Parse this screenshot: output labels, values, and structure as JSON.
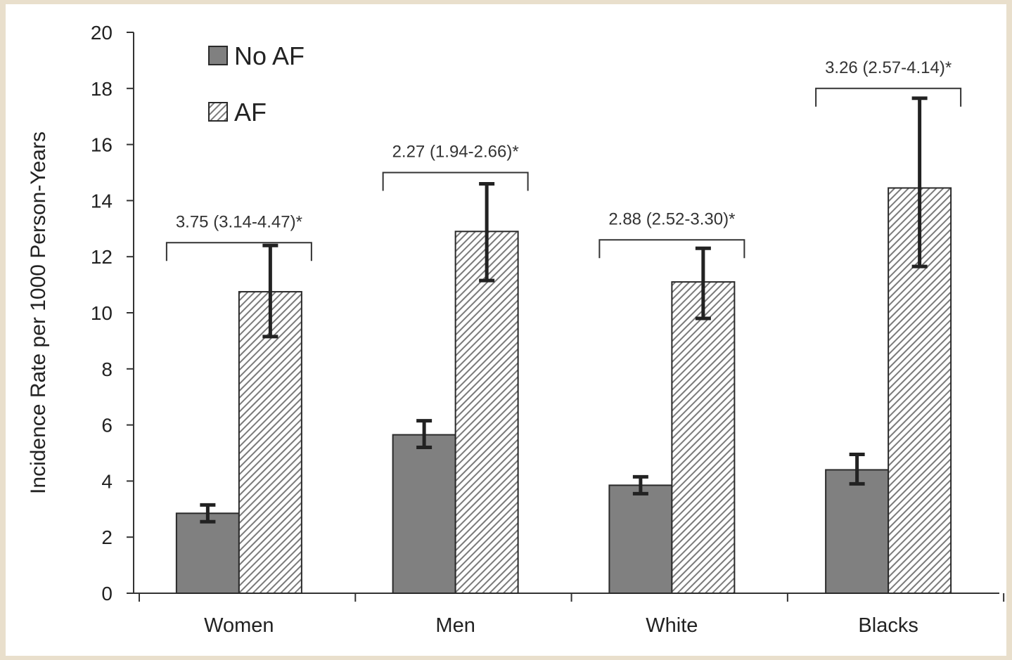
{
  "chart_data": {
    "type": "bar",
    "ylabel": "Incidence Rate per 1000 Person-Years",
    "xlabel": "",
    "ylim": [
      0,
      20
    ],
    "yticks": [
      0,
      2,
      4,
      6,
      8,
      10,
      12,
      14,
      16,
      18,
      20
    ],
    "categories": [
      "Women",
      "Men",
      "White",
      "Blacks"
    ],
    "series": [
      {
        "name": "No AF",
        "fill": "solid",
        "color": "#808080",
        "values": [
          2.85,
          5.65,
          3.85,
          4.4
        ],
        "error_low": [
          2.55,
          5.2,
          3.55,
          3.9
        ],
        "error_high": [
          3.15,
          6.15,
          4.15,
          4.95
        ]
      },
      {
        "name": "AF",
        "fill": "hatched",
        "color": "#9a9a9a",
        "values": [
          10.75,
          12.9,
          11.1,
          14.45
        ],
        "error_low": [
          9.15,
          11.15,
          9.8,
          11.65
        ],
        "error_high": [
          12.4,
          14.6,
          12.3,
          17.65
        ]
      }
    ],
    "annotations": [
      "3.75 (3.14-4.47)*",
      "2.27 (1.94-2.66)*",
      "2.88 (2.52-3.30)*",
      "3.26 (2.57-4.14)*"
    ],
    "annotation_levels": [
      12.5,
      15.0,
      12.6,
      18.0
    ],
    "legend": {
      "position": "top-left"
    },
    "grid": false
  }
}
